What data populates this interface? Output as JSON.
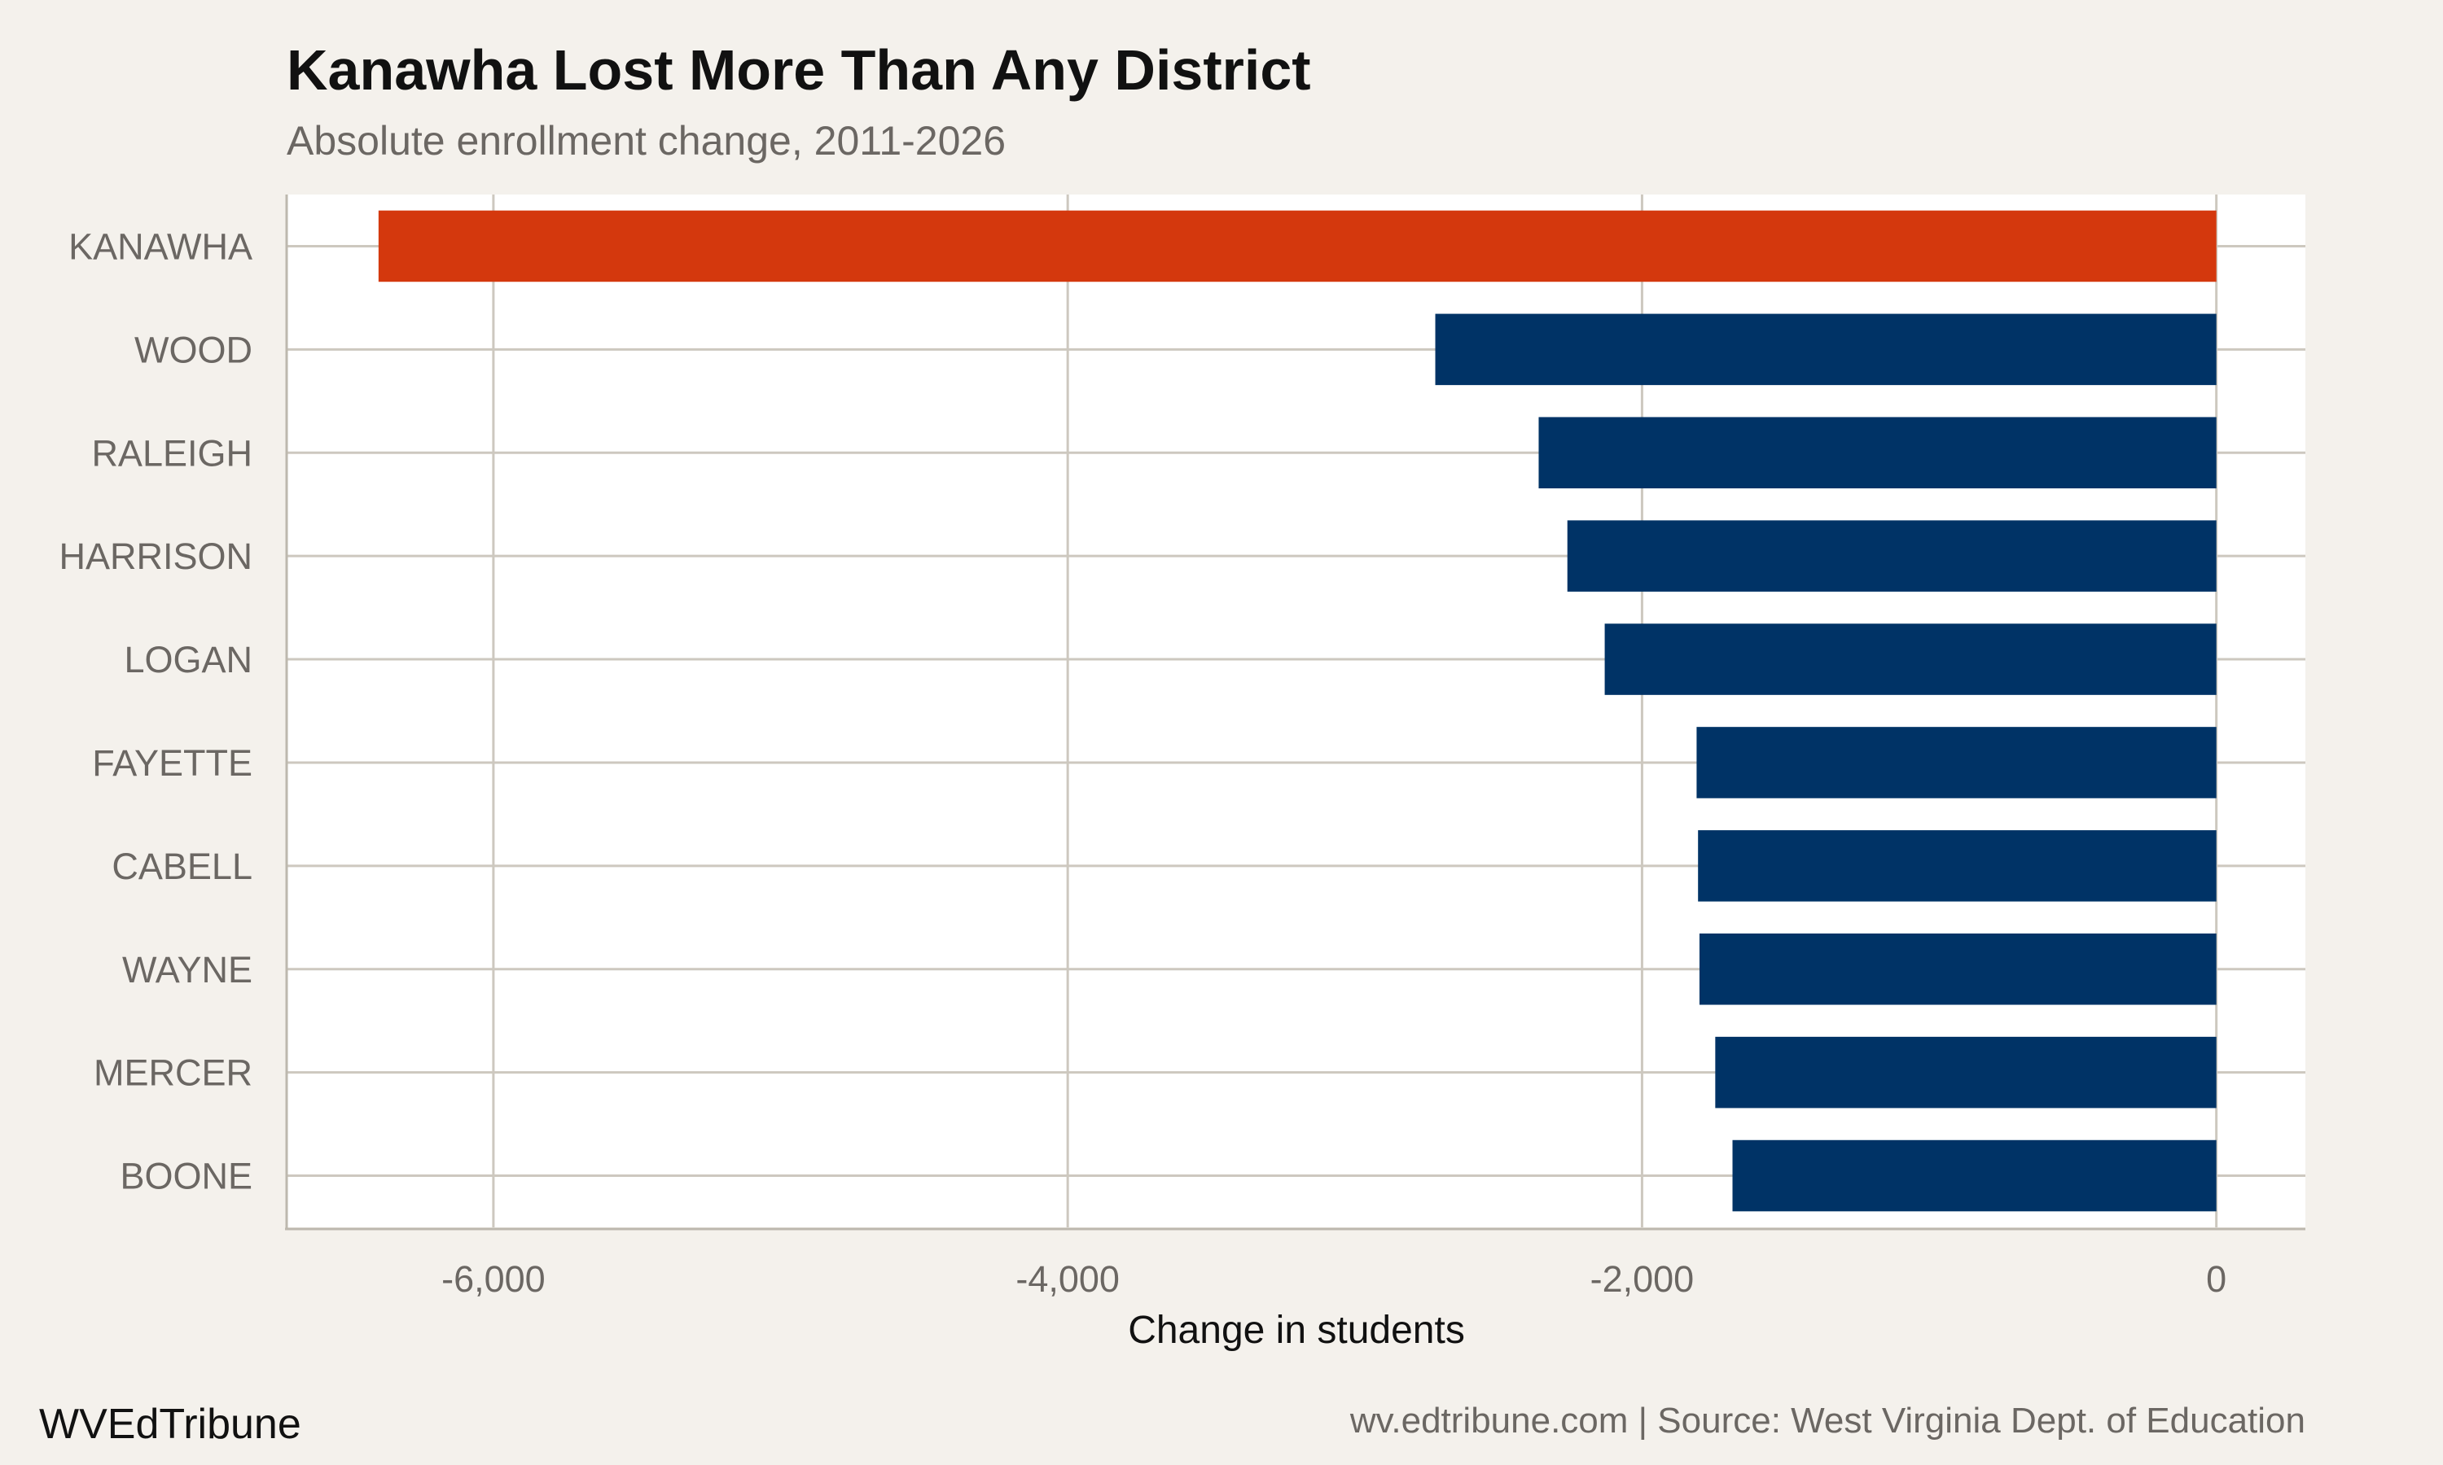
{
  "chart_data": {
    "type": "bar",
    "orientation": "horizontal",
    "title": "Kanawha Lost More Than Any District",
    "subtitle": "Absolute enrollment change, 2011-2026",
    "xlabel": "Change in students",
    "ylabel": "",
    "categories": [
      "KANAWHA",
      "WOOD",
      "RALEIGH",
      "HARRISON",
      "LOGAN",
      "FAYETTE",
      "CABELL",
      "WAYNE",
      "MERCER",
      "BOONE"
    ],
    "values": [
      -6400,
      -2720,
      -2360,
      -2260,
      -2130,
      -1810,
      -1805,
      -1800,
      -1745,
      -1685
    ],
    "highlight": "KANAWHA",
    "xlim": [
      -6720,
      310
    ],
    "xticks": [
      -6000,
      -4000,
      -2000,
      0
    ],
    "xtick_labels": [
      "-6,000",
      "-4,000",
      "-2,000",
      "0"
    ],
    "grid": true,
    "colors": {
      "highlight": "#d4380d",
      "default": "#003366",
      "background": "#f4f1ec",
      "panel": "#ffffff",
      "grid": "#cdc8bf"
    }
  },
  "footer": {
    "brand": "WVEdTribune",
    "source": "wv.edtribune.com | Source: West Virginia Dept. of Education"
  }
}
